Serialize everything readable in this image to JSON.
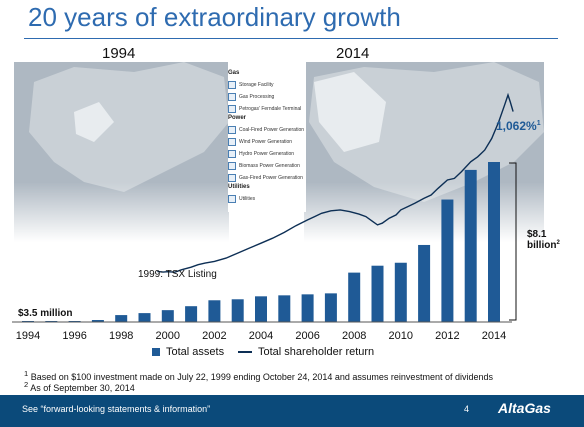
{
  "title": "20 years of extraordinary growth",
  "map_years": [
    "1994",
    "2014"
  ],
  "map_legend": {
    "gas_heading": "Gas",
    "gas_items": [
      "Storage Facility",
      "Gas Processing",
      "Petrogas’ Ferndale Terminal"
    ],
    "power_heading": "Power",
    "power_items": [
      "Coal-Fired Power Generation",
      "Wind Power Generation",
      "Hydro Power Generation",
      "Biomass Power Generation",
      "Gas-Fired Power Generation"
    ],
    "utilities_heading": "Utilities",
    "utilities_items": [
      "Utilities"
    ]
  },
  "chart_data": {
    "type": "bar",
    "categories": [
      "1994",
      "1995",
      "1996",
      "1997",
      "1998",
      "1999",
      "2000",
      "2001",
      "2002",
      "2003",
      "2004",
      "2005",
      "2006",
      "2007",
      "2008",
      "2009",
      "2010",
      "2011",
      "2012",
      "2013",
      "2014"
    ],
    "series": [
      {
        "name": "Total assets",
        "type": "bar",
        "values": [
          0.01,
          0.03,
          0.05,
          0.1,
          0.35,
          0.45,
          0.6,
          0.8,
          1.1,
          1.15,
          1.3,
          1.35,
          1.4,
          1.45,
          2.5,
          2.85,
          3.0,
          3.9,
          6.2,
          7.7,
          8.1
        ]
      },
      {
        "name": "Total shareholder return",
        "type": "line",
        "x": [
          1999.55,
          1999.8,
          2000.0,
          2000.3,
          2000.6,
          2001.0,
          2001.3,
          2001.6,
          2002.0,
          2002.5,
          2003.0,
          2003.5,
          2004.0,
          2004.5,
          2005.0,
          2005.5,
          2006.0,
          2006.3,
          2006.6,
          2007.0,
          2007.4,
          2007.8,
          2008.2,
          2008.5,
          2008.8,
          2009.0,
          2009.2,
          2009.5,
          2009.8,
          2010.0,
          2010.3,
          2010.6,
          2011.0,
          2011.3,
          2011.6,
          2012.0,
          2012.3,
          2012.6,
          2013.0,
          2013.3,
          2013.6,
          2013.9,
          2014.2,
          2014.45,
          2014.6,
          2014.7,
          2014.82
        ],
        "values": [
          100,
          96,
          98,
          95,
          110,
          125,
          140,
          150,
          160,
          180,
          210,
          240,
          270,
          300,
          335,
          375,
          410,
          430,
          450,
          465,
          470,
          460,
          445,
          430,
          400,
          380,
          390,
          420,
          440,
          470,
          490,
          510,
          540,
          560,
          600,
          650,
          660,
          700,
          760,
          790,
          830,
          900,
          1000,
          1100,
          1162,
          1120,
          1062
        ]
      }
    ],
    "x_tick_labels": [
      "1994",
      "1996",
      "1998",
      "2000",
      "2002",
      "2004",
      "2006",
      "2008",
      "2010",
      "2012",
      "2014"
    ],
    "annotations": {
      "start_assets": "$3.5 million",
      "tsx_listing": "1999: TSX Listing",
      "return_label": "1,062%",
      "return_sup": "1",
      "assets_label_line1": "$8.1",
      "assets_label_line2": "billion",
      "assets_sup": "2"
    },
    "colors": {
      "bars": "#1f5a96",
      "line": "#0d2f55"
    },
    "legend": {
      "placement": "bottom",
      "items": [
        "Total assets",
        "Total shareholder return"
      ]
    }
  },
  "footnotes": [
    {
      "sup": "1",
      "text": "Based on $100 investment made on July 22, 1999 ending October 24, 2014 and assumes reinvestment of dividends"
    },
    {
      "sup": "2",
      "text": "As of September 30, 2014"
    }
  ],
  "footer": {
    "text": "See “forward-looking statements & information”",
    "page": "4",
    "logo": "AltaGas"
  }
}
